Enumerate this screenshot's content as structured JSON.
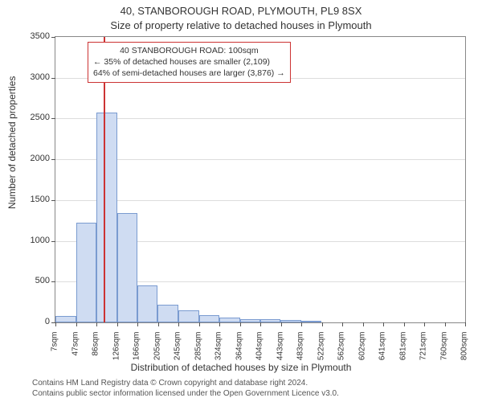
{
  "chart": {
    "type": "histogram",
    "title_line1": "40, STANBOROUGH ROAD, PLYMOUTH, PL9 8SX",
    "title_line2": "Size of property relative to detached houses in Plymouth",
    "ylabel": "Number of detached properties",
    "xlabel": "Distribution of detached houses by size in Plymouth",
    "background_color": "#ffffff",
    "grid_color": "#dddddd",
    "axis_color": "#888888",
    "bar_fill": "#cfdcf2",
    "bar_stroke": "#7a9bd0",
    "marker_color": "#cc3333",
    "ylim": [
      0,
      3500
    ],
    "ytick_step": 500,
    "yticks": [
      0,
      500,
      1000,
      1500,
      2000,
      2500,
      3000,
      3500
    ],
    "xticks": [
      "7sqm",
      "47sqm",
      "86sqm",
      "126sqm",
      "166sqm",
      "205sqm",
      "245sqm",
      "285sqm",
      "324sqm",
      "364sqm",
      "404sqm",
      "443sqm",
      "483sqm",
      "522sqm",
      "562sqm",
      "602sqm",
      "641sqm",
      "681sqm",
      "721sqm",
      "760sqm",
      "800sqm"
    ],
    "x_min": 7,
    "x_max": 800,
    "marker_x": 100,
    "bars": [
      {
        "x0": 7,
        "x1": 47,
        "count": 80
      },
      {
        "x0": 47,
        "x1": 86,
        "count": 1220
      },
      {
        "x0": 86,
        "x1": 126,
        "count": 2570
      },
      {
        "x0": 126,
        "x1": 166,
        "count": 1340
      },
      {
        "x0": 166,
        "x1": 205,
        "count": 450
      },
      {
        "x0": 205,
        "x1": 245,
        "count": 220
      },
      {
        "x0": 245,
        "x1": 285,
        "count": 150
      },
      {
        "x0": 285,
        "x1": 324,
        "count": 90
      },
      {
        "x0": 324,
        "x1": 364,
        "count": 60
      },
      {
        "x0": 364,
        "x1": 404,
        "count": 40
      },
      {
        "x0": 404,
        "x1": 443,
        "count": 40
      },
      {
        "x0": 443,
        "x1": 483,
        "count": 30
      },
      {
        "x0": 483,
        "x1": 522,
        "count": 10
      }
    ],
    "info_box": {
      "line1": "40 STANBOROUGH ROAD: 100sqm",
      "line2": "← 35% of detached houses are smaller (2,109)",
      "line3": "64% of semi-detached houses are larger (3,876) →"
    },
    "footer_line1": "Contains HM Land Registry data © Crown copyright and database right 2024.",
    "footer_line2": "Contains public sector information licensed under the Open Government Licence v3.0."
  }
}
